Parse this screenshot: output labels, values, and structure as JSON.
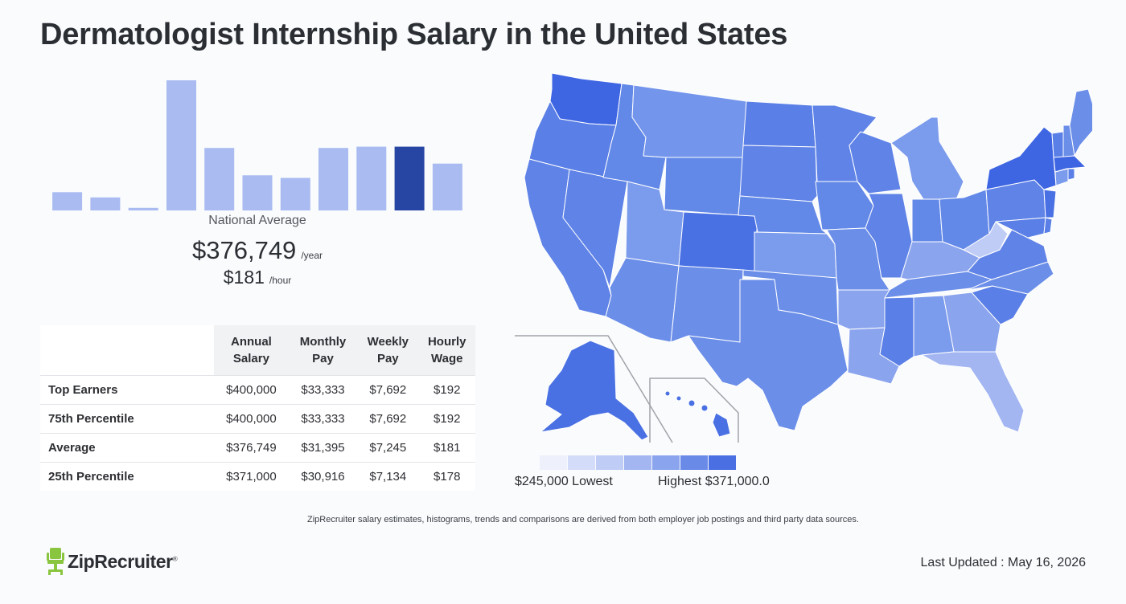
{
  "title": "Dermatologist Internship Salary in the United States",
  "chart_data": [
    {
      "type": "bar",
      "title": "",
      "xlabel": "",
      "ylabel": "",
      "categories": [
        "1",
        "2",
        "3",
        "4",
        "5",
        "6",
        "7",
        "8",
        "9",
        "10",
        "11"
      ],
      "values": [
        14,
        10,
        2,
        100,
        48,
        27,
        25,
        48,
        49,
        49,
        36
      ],
      "highlight_index": 9,
      "ylim": [
        0,
        100
      ],
      "grid": false
    },
    {
      "type": "heatmap",
      "title": "",
      "legend_low": "$245,000 Lowest",
      "legend_high": "Highest $371,000.0",
      "min": 245000,
      "max": 371000,
      "scale_colors": [
        "#eef0fc",
        "#d3dcf8",
        "#bfccf6",
        "#a3b6f2",
        "#8ba4ee",
        "#6a8ae8",
        "#4a6fe3"
      ]
    }
  ],
  "national": {
    "label": "National Average",
    "yearly": "$376,749",
    "yearly_unit": "/year",
    "hourly": "$181",
    "hourly_unit": "/hour"
  },
  "table": {
    "headers": [
      [
        "Annual",
        "Salary"
      ],
      [
        "Monthly",
        "Pay"
      ],
      [
        "Weekly",
        "Pay"
      ],
      [
        "Hourly",
        "Wage"
      ]
    ],
    "rows": [
      {
        "label": "Top Earners",
        "values": [
          "$400,000",
          "$33,333",
          "$7,692",
          "$192"
        ]
      },
      {
        "label": "75th Percentile",
        "values": [
          "$400,000",
          "$33,333",
          "$7,692",
          "$192"
        ]
      },
      {
        "label": "Average",
        "values": [
          "$376,749",
          "$31,395",
          "$7,245",
          "$181"
        ]
      },
      {
        "label": "25th Percentile",
        "values": [
          "$371,000",
          "$30,916",
          "$7,134",
          "$178"
        ]
      }
    ]
  },
  "colors": {
    "bar": "#a9bbf1",
    "bar_highlight": "#2746a3",
    "map_border": "#ffffff",
    "logo_green": "#8ac53f"
  },
  "footnote": "ZipRecruiter salary estimates, histograms, trends and comparisons are derived from both employer job postings and third party data sources.",
  "brand": {
    "name": "ZipRecruiter",
    "mark": "®"
  },
  "updated": "Last Updated : May 16, 2026"
}
